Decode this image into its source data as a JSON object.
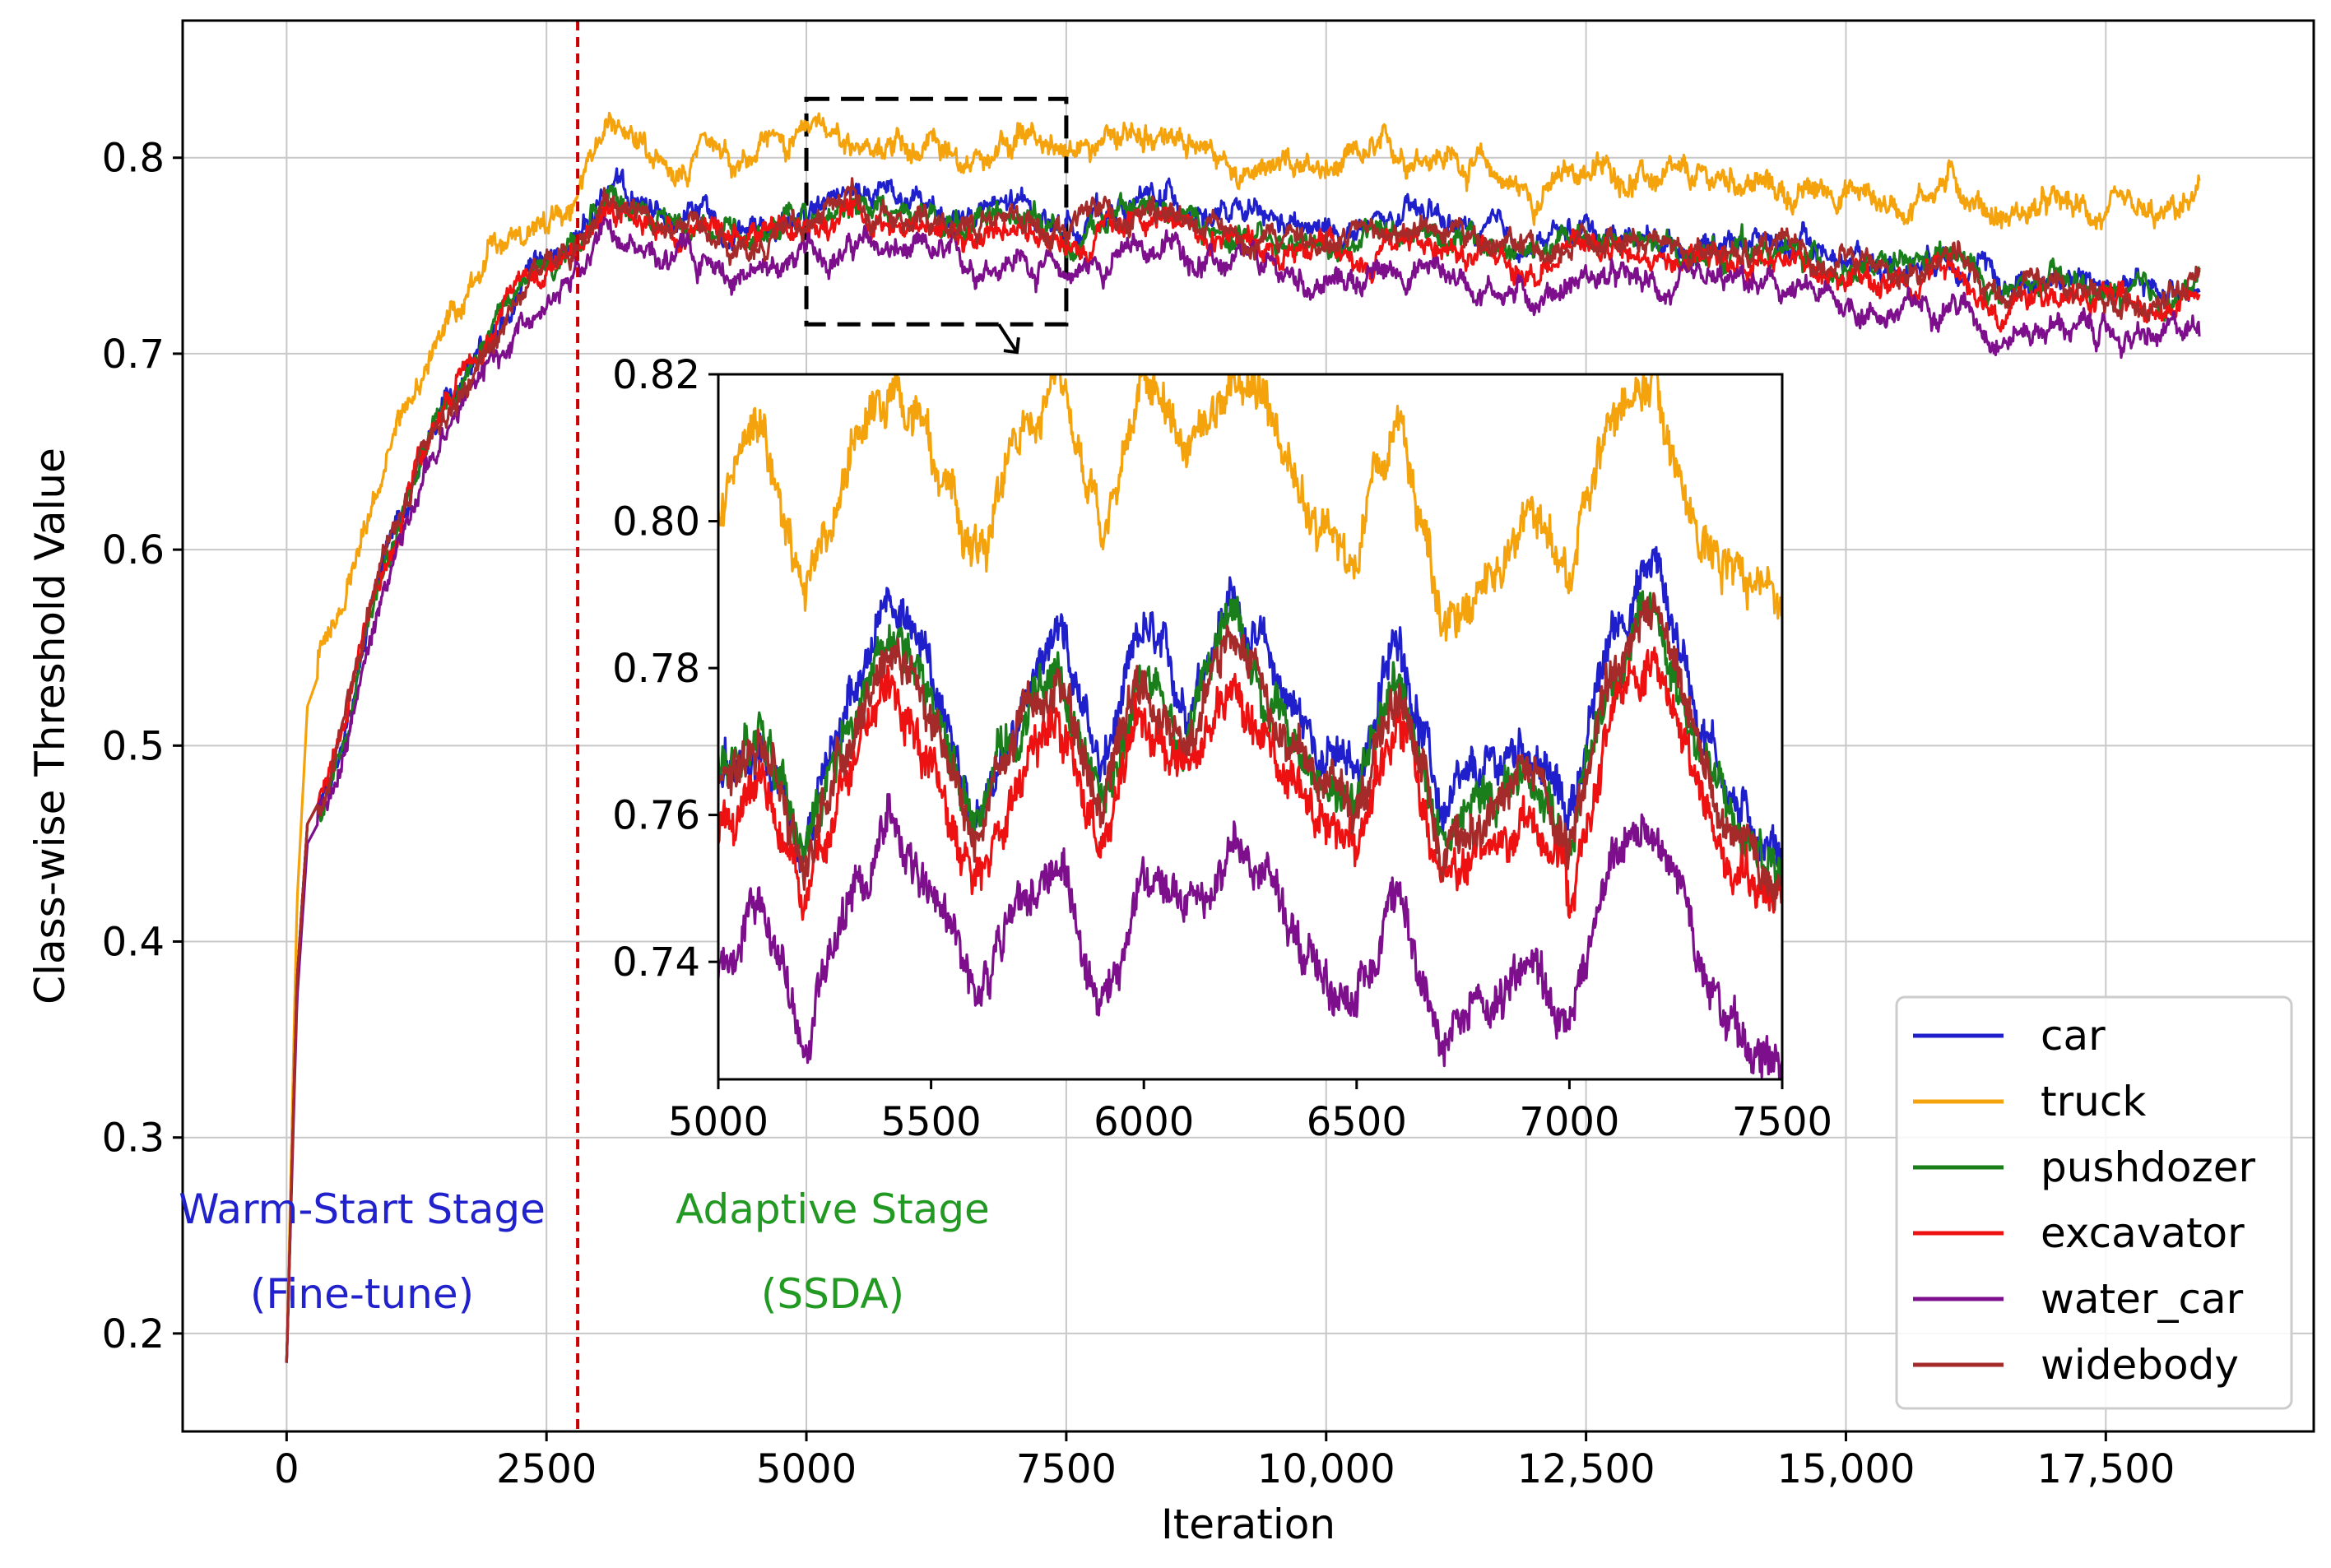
{
  "chart_data": [
    {
      "type": "line",
      "role": "main",
      "title": "",
      "xlabel": "Iteration",
      "ylabel": "Class-wise Threshold Value",
      "xlim": [
        -1000,
        19500
      ],
      "ylim": [
        0.15,
        0.87
      ],
      "xticks": [
        0,
        2500,
        5000,
        7500,
        10000,
        12500,
        15000,
        17500
      ],
      "xtick_labels": [
        "0",
        "2500",
        "5000",
        "7500",
        "10,000",
        "12,500",
        "15,000",
        "17,500"
      ],
      "yticks": [
        0.2,
        0.3,
        0.4,
        0.5,
        0.6,
        0.7,
        0.8
      ],
      "ytick_labels": [
        "0.2",
        "0.3",
        "0.4",
        "0.5",
        "0.6",
        "0.7",
        "0.8"
      ],
      "grid": true,
      "legend_position": "bottom-right",
      "stage_divider": {
        "x": 2800,
        "style": "dashed",
        "color": "#cc0000"
      },
      "zoom_box": {
        "x": [
          5000,
          7500
        ],
        "y": [
          0.715,
          0.83
        ]
      },
      "annotations": [
        {
          "line1": "Warm-Start Stage",
          "line2": "(Fine-tune)",
          "color": "#2222cc"
        },
        {
          "line1": "Adaptive Stage",
          "line2": "(SSDA)",
          "color": "#229922"
        }
      ],
      "x": [
        0,
        100,
        200,
        400,
        600,
        800,
        1000,
        1250,
        1500,
        1750,
        2000,
        2250,
        2500,
        2800,
        3100,
        3500,
        4000,
        4500,
        5000,
        5500,
        6000,
        6500,
        7000,
        7500,
        8000,
        8500,
        9000,
        9500,
        10000,
        10500,
        11000,
        11500,
        12000,
        12500,
        13000,
        13500,
        14000,
        14500,
        15000,
        15500,
        16000,
        16500,
        17000,
        17500,
        18000,
        18400
      ],
      "series": [
        {
          "name": "car",
          "color": "#1f1fcc",
          "values": [
            0.185,
            0.38,
            0.46,
            0.48,
            0.52,
            0.57,
            0.6,
            0.64,
            0.67,
            0.69,
            0.71,
            0.73,
            0.74,
            0.76,
            0.785,
            0.77,
            0.775,
            0.76,
            0.775,
            0.78,
            0.775,
            0.77,
            0.775,
            0.765,
            0.775,
            0.78,
            0.77,
            0.765,
            0.76,
            0.765,
            0.77,
            0.76,
            0.755,
            0.765,
            0.76,
            0.755,
            0.76,
            0.755,
            0.75,
            0.745,
            0.755,
            0.735,
            0.74,
            0.735,
            0.73,
            0.74
          ]
        },
        {
          "name": "truck",
          "color": "#f5a30d",
          "values": [
            0.185,
            0.42,
            0.52,
            0.55,
            0.59,
            0.62,
            0.65,
            0.68,
            0.71,
            0.73,
            0.76,
            0.765,
            0.77,
            0.785,
            0.815,
            0.8,
            0.805,
            0.8,
            0.81,
            0.81,
            0.805,
            0.8,
            0.81,
            0.8,
            0.81,
            0.81,
            0.8,
            0.795,
            0.79,
            0.8,
            0.805,
            0.795,
            0.78,
            0.795,
            0.79,
            0.785,
            0.79,
            0.78,
            0.785,
            0.775,
            0.79,
            0.77,
            0.775,
            0.77,
            0.765,
            0.78
          ]
        },
        {
          "name": "pushdozer",
          "color": "#1a7f1a",
          "values": [
            0.185,
            0.38,
            0.46,
            0.48,
            0.52,
            0.57,
            0.6,
            0.64,
            0.67,
            0.69,
            0.71,
            0.73,
            0.74,
            0.76,
            0.78,
            0.765,
            0.77,
            0.76,
            0.77,
            0.775,
            0.77,
            0.765,
            0.77,
            0.76,
            0.77,
            0.775,
            0.765,
            0.76,
            0.755,
            0.76,
            0.765,
            0.755,
            0.75,
            0.76,
            0.755,
            0.75,
            0.755,
            0.75,
            0.745,
            0.74,
            0.75,
            0.73,
            0.735,
            0.73,
            0.725,
            0.735
          ]
        },
        {
          "name": "excavator",
          "color": "#ee1111",
          "values": [
            0.185,
            0.38,
            0.46,
            0.48,
            0.52,
            0.57,
            0.6,
            0.64,
            0.67,
            0.69,
            0.71,
            0.73,
            0.74,
            0.755,
            0.78,
            0.765,
            0.765,
            0.755,
            0.765,
            0.77,
            0.765,
            0.76,
            0.765,
            0.755,
            0.765,
            0.77,
            0.76,
            0.755,
            0.75,
            0.755,
            0.76,
            0.75,
            0.745,
            0.755,
            0.75,
            0.745,
            0.75,
            0.745,
            0.74,
            0.735,
            0.745,
            0.725,
            0.73,
            0.725,
            0.72,
            0.73
          ]
        },
        {
          "name": "water_car",
          "color": "#7d0f8c",
          "values": [
            0.185,
            0.37,
            0.45,
            0.47,
            0.51,
            0.56,
            0.59,
            0.63,
            0.66,
            0.68,
            0.7,
            0.715,
            0.725,
            0.74,
            0.765,
            0.75,
            0.75,
            0.74,
            0.75,
            0.755,
            0.75,
            0.745,
            0.75,
            0.74,
            0.75,
            0.755,
            0.745,
            0.74,
            0.735,
            0.74,
            0.745,
            0.735,
            0.73,
            0.74,
            0.735,
            0.73,
            0.735,
            0.73,
            0.725,
            0.72,
            0.73,
            0.71,
            0.715,
            0.71,
            0.705,
            0.715
          ]
        },
        {
          "name": "widebody",
          "color": "#a52a2a",
          "values": [
            0.185,
            0.38,
            0.46,
            0.48,
            0.52,
            0.57,
            0.6,
            0.64,
            0.67,
            0.69,
            0.71,
            0.73,
            0.74,
            0.76,
            0.78,
            0.765,
            0.77,
            0.76,
            0.77,
            0.775,
            0.77,
            0.765,
            0.77,
            0.76,
            0.77,
            0.775,
            0.765,
            0.76,
            0.755,
            0.76,
            0.765,
            0.755,
            0.75,
            0.76,
            0.755,
            0.75,
            0.755,
            0.75,
            0.745,
            0.74,
            0.75,
            0.73,
            0.735,
            0.73,
            0.725,
            0.735
          ]
        }
      ]
    },
    {
      "type": "line",
      "role": "inset",
      "title": "",
      "xlim": [
        5000,
        7500
      ],
      "ylim": [
        0.724,
        0.82
      ],
      "xticks": [
        5000,
        5500,
        6000,
        6500,
        7000,
        7500
      ],
      "xtick_labels": [
        "5000",
        "5500",
        "6000",
        "6500",
        "7000",
        "7500"
      ],
      "yticks": [
        0.74,
        0.76,
        0.78,
        0.8,
        0.82
      ],
      "ytick_labels": [
        "0.74",
        "0.76",
        "0.78",
        "0.80",
        "0.82"
      ],
      "x": [
        5000,
        5100,
        5200,
        5300,
        5400,
        5500,
        5600,
        5700,
        5800,
        5900,
        6000,
        6100,
        6200,
        6300,
        6400,
        6500,
        6600,
        6700,
        6800,
        6900,
        7000,
        7100,
        7200,
        7300,
        7400,
        7500
      ],
      "series": [
        {
          "name": "car",
          "values": [
            0.765,
            0.77,
            0.755,
            0.775,
            0.79,
            0.78,
            0.76,
            0.775,
            0.785,
            0.765,
            0.785,
            0.775,
            0.79,
            0.78,
            0.77,
            0.765,
            0.785,
            0.76,
            0.765,
            0.77,
            0.76,
            0.785,
            0.795,
            0.775,
            0.76,
            0.755
          ]
        },
        {
          "name": "truck",
          "values": [
            0.8,
            0.815,
            0.79,
            0.805,
            0.82,
            0.81,
            0.795,
            0.81,
            0.82,
            0.8,
            0.82,
            0.81,
            0.82,
            0.815,
            0.8,
            0.795,
            0.815,
            0.785,
            0.79,
            0.8,
            0.795,
            0.815,
            0.82,
            0.8,
            0.79,
            0.79
          ]
        },
        {
          "name": "pushdozer",
          "values": [
            0.765,
            0.772,
            0.753,
            0.77,
            0.785,
            0.775,
            0.758,
            0.772,
            0.78,
            0.762,
            0.78,
            0.77,
            0.785,
            0.776,
            0.766,
            0.762,
            0.78,
            0.757,
            0.762,
            0.766,
            0.757,
            0.78,
            0.788,
            0.77,
            0.757,
            0.752
          ]
        },
        {
          "name": "excavator",
          "values": [
            0.758,
            0.765,
            0.748,
            0.765,
            0.778,
            0.768,
            0.752,
            0.766,
            0.774,
            0.756,
            0.774,
            0.765,
            0.778,
            0.77,
            0.76,
            0.755,
            0.773,
            0.75,
            0.755,
            0.76,
            0.75,
            0.773,
            0.782,
            0.764,
            0.75,
            0.748
          ]
        },
        {
          "name": "water_car",
          "values": [
            0.738,
            0.748,
            0.73,
            0.745,
            0.76,
            0.75,
            0.733,
            0.748,
            0.752,
            0.735,
            0.752,
            0.745,
            0.756,
            0.75,
            0.74,
            0.735,
            0.752,
            0.728,
            0.733,
            0.74,
            0.73,
            0.752,
            0.76,
            0.742,
            0.73,
            0.728
          ]
        },
        {
          "name": "widebody",
          "values": [
            0.764,
            0.771,
            0.752,
            0.769,
            0.784,
            0.774,
            0.757,
            0.771,
            0.779,
            0.761,
            0.779,
            0.769,
            0.784,
            0.775,
            0.765,
            0.761,
            0.779,
            0.756,
            0.761,
            0.765,
            0.756,
            0.779,
            0.787,
            0.769,
            0.756,
            0.751
          ]
        }
      ]
    }
  ]
}
